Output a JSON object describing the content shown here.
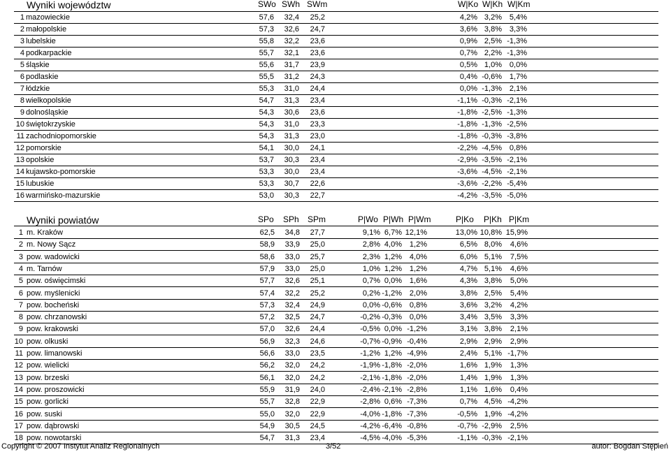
{
  "woj": {
    "title": "Wyniki województw",
    "headers": [
      "SWo",
      "SWh",
      "SWm",
      "W|Ko",
      "W|Kh",
      "W|Km"
    ],
    "rows": [
      [
        "1",
        "mazowieckie",
        "57,6",
        "32,4",
        "25,2",
        "4,2%",
        "3,2%",
        "5,4%"
      ],
      [
        "2",
        "małopolskie",
        "57,3",
        "32,6",
        "24,7",
        "3,6%",
        "3,8%",
        "3,3%"
      ],
      [
        "3",
        "lubelskie",
        "55,8",
        "32,2",
        "23,6",
        "0,9%",
        "2,5%",
        "-1,3%"
      ],
      [
        "4",
        "podkarpackie",
        "55,7",
        "32,1",
        "23,6",
        "0,7%",
        "2,2%",
        "-1,3%"
      ],
      [
        "5",
        "śląskie",
        "55,6",
        "31,7",
        "23,9",
        "0,5%",
        "1,0%",
        "0,0%"
      ],
      [
        "6",
        "podlaskie",
        "55,5",
        "31,2",
        "24,3",
        "0,4%",
        "-0,6%",
        "1,7%"
      ],
      [
        "7",
        "łódzkie",
        "55,3",
        "31,0",
        "24,4",
        "0,0%",
        "-1,3%",
        "2,1%"
      ],
      [
        "8",
        "wielkopolskie",
        "54,7",
        "31,3",
        "23,4",
        "-1,1%",
        "-0,3%",
        "-2,1%"
      ],
      [
        "9",
        "dolnośląskie",
        "54,3",
        "30,6",
        "23,6",
        "-1,8%",
        "-2,5%",
        "-1,3%"
      ],
      [
        "10",
        "świętokrzyskie",
        "54,3",
        "31,0",
        "23,3",
        "-1,8%",
        "-1,3%",
        "-2,5%"
      ],
      [
        "11",
        "zachodniopomorskie",
        "54,3",
        "31,3",
        "23,0",
        "-1,8%",
        "-0,3%",
        "-3,8%"
      ],
      [
        "12",
        "pomorskie",
        "54,1",
        "30,0",
        "24,1",
        "-2,2%",
        "-4,5%",
        "0,8%"
      ],
      [
        "13",
        "opolskie",
        "53,7",
        "30,3",
        "23,4",
        "-2,9%",
        "-3,5%",
        "-2,1%"
      ],
      [
        "14",
        "kujawsko-pomorskie",
        "53,3",
        "30,0",
        "23,4",
        "-3,6%",
        "-4,5%",
        "-2,1%"
      ],
      [
        "15",
        "lubuskie",
        "53,3",
        "30,7",
        "22,6",
        "-3,6%",
        "-2,2%",
        "-5,4%"
      ],
      [
        "16",
        "warmińsko-mazurskie",
        "53,0",
        "30,3",
        "22,7",
        "-4,2%",
        "-3,5%",
        "-5,0%"
      ]
    ]
  },
  "pow": {
    "title": "Wyniki powiatów",
    "headers": [
      "SPo",
      "SPh",
      "SPm",
      "P|Wo",
      "P|Wh",
      "P|Wm",
      "P|Ko",
      "P|Kh",
      "P|Km"
    ],
    "rows": [
      [
        "1",
        "m. Kraków",
        "62,5",
        "34,8",
        "27,7",
        "9,1%",
        "6,7%",
        "12,1%",
        "13,0%",
        "10,8%",
        "15,9%"
      ],
      [
        "2",
        "m. Nowy Sącz",
        "58,9",
        "33,9",
        "25,0",
        "2,8%",
        "4,0%",
        "1,2%",
        "6,5%",
        "8,0%",
        "4,6%"
      ],
      [
        "3",
        "pow. wadowicki",
        "58,6",
        "33,0",
        "25,7",
        "2,3%",
        "1,2%",
        "4,0%",
        "6,0%",
        "5,1%",
        "7,5%"
      ],
      [
        "4",
        "m. Tarnów",
        "57,9",
        "33,0",
        "25,0",
        "1,0%",
        "1,2%",
        "1,2%",
        "4,7%",
        "5,1%",
        "4,6%"
      ],
      [
        "5",
        "pow. oświęcimski",
        "57,7",
        "32,6",
        "25,1",
        "0,7%",
        "0,0%",
        "1,6%",
        "4,3%",
        "3,8%",
        "5,0%"
      ],
      [
        "6",
        "pow. myślenicki",
        "57,4",
        "32,2",
        "25,2",
        "0,2%",
        "-1,2%",
        "2,0%",
        "3,8%",
        "2,5%",
        "5,4%"
      ],
      [
        "7",
        "pow. bocheński",
        "57,3",
        "32,4",
        "24,9",
        "0,0%",
        "-0,6%",
        "0,8%",
        "3,6%",
        "3,2%",
        "4,2%"
      ],
      [
        "8",
        "pow. chrzanowski",
        "57,2",
        "32,5",
        "24,7",
        "-0,2%",
        "-0,3%",
        "0,0%",
        "3,4%",
        "3,5%",
        "3,3%"
      ],
      [
        "9",
        "pow. krakowski",
        "57,0",
        "32,6",
        "24,4",
        "-0,5%",
        "0,0%",
        "-1,2%",
        "3,1%",
        "3,8%",
        "2,1%"
      ],
      [
        "10",
        "pow. olkuski",
        "56,9",
        "32,3",
        "24,6",
        "-0,7%",
        "-0,9%",
        "-0,4%",
        "2,9%",
        "2,9%",
        "2,9%"
      ],
      [
        "11",
        "pow. limanowski",
        "56,6",
        "33,0",
        "23,5",
        "-1,2%",
        "1,2%",
        "-4,9%",
        "2,4%",
        "5,1%",
        "-1,7%"
      ],
      [
        "12",
        "pow. wielicki",
        "56,2",
        "32,0",
        "24,2",
        "-1,9%",
        "-1,8%",
        "-2,0%",
        "1,6%",
        "1,9%",
        "1,3%"
      ],
      [
        "13",
        "pow. brzeski",
        "56,1",
        "32,0",
        "24,2",
        "-2,1%",
        "-1,8%",
        "-2,0%",
        "1,4%",
        "1,9%",
        "1,3%"
      ],
      [
        "14",
        "pow. proszowicki",
        "55,9",
        "31,9",
        "24,0",
        "-2,4%",
        "-2,1%",
        "-2,8%",
        "1,1%",
        "1,6%",
        "0,4%"
      ],
      [
        "15",
        "pow. gorlicki",
        "55,7",
        "32,8",
        "22,9",
        "-2,8%",
        "0,6%",
        "-7,3%",
        "0,7%",
        "4,5%",
        "-4,2%"
      ],
      [
        "16",
        "pow. suski",
        "55,0",
        "32,0",
        "22,9",
        "-4,0%",
        "-1,8%",
        "-7,3%",
        "-0,5%",
        "1,9%",
        "-4,2%"
      ],
      [
        "17",
        "pow. dąbrowski",
        "54,9",
        "30,5",
        "24,5",
        "-4,2%",
        "-6,4%",
        "-0,8%",
        "-0,7%",
        "-2,9%",
        "2,5%"
      ],
      [
        "18",
        "pow. nowotarski",
        "54,7",
        "31,3",
        "23,4",
        "-4,5%",
        "-4,0%",
        "-5,3%",
        "-1,1%",
        "-0,3%",
        "-2,1%"
      ]
    ]
  },
  "footer": {
    "copyright": "Copyright © 2007 Instytut Analiz Regionalnych",
    "page": "3/52",
    "author": "autor: Bogdan Stępień"
  }
}
